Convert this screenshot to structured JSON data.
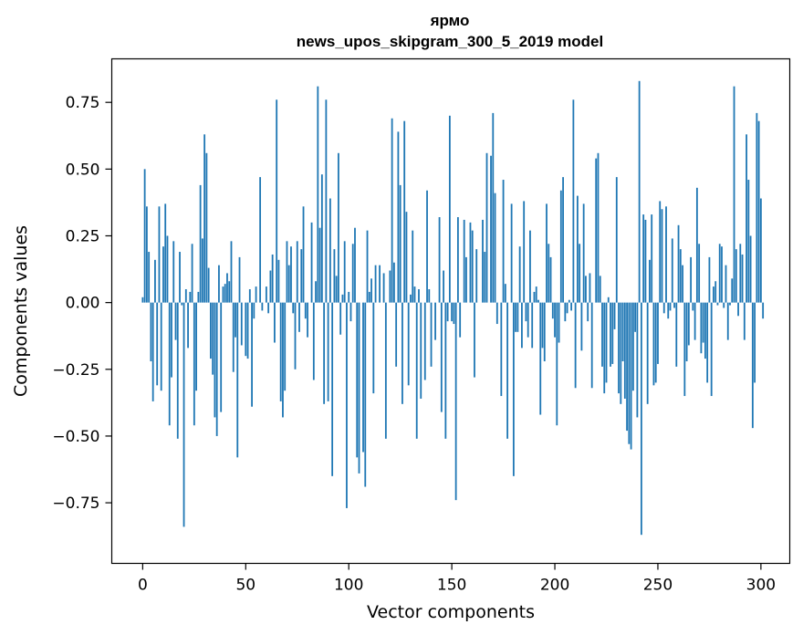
{
  "chart_data": {
    "type": "bar",
    "title": "ярмо",
    "subtitle": "news_upos_skipgram_300_5_2019 model",
    "xlabel": "Vector components",
    "ylabel": "Components values",
    "xlim": [
      -15,
      314
    ],
    "ylim": [
      -0.977,
      0.913
    ],
    "x_ticks": [
      0,
      50,
      100,
      150,
      200,
      250,
      300
    ],
    "x_tick_labels": [
      "0",
      "50",
      "100",
      "150",
      "200",
      "250",
      "300"
    ],
    "y_ticks": [
      -0.75,
      -0.5,
      -0.25,
      0.0,
      0.25,
      0.5,
      0.75
    ],
    "y_tick_labels": [
      "−0.75",
      "−0.50",
      "−0.25",
      "0.00",
      "0.25",
      "0.50",
      "0.75"
    ],
    "grid": false,
    "bar_color": "#1f77b4",
    "values": [
      0.02,
      0.5,
      0.36,
      0.19,
      -0.22,
      -0.37,
      0.16,
      -0.31,
      0.36,
      -0.33,
      0.21,
      0.37,
      0.25,
      -0.46,
      -0.28,
      0.23,
      -0.14,
      -0.51,
      0.19,
      -0.01,
      -0.84,
      0.05,
      -0.17,
      0.04,
      0.22,
      -0.46,
      -0.33,
      0.04,
      0.44,
      0.24,
      0.63,
      0.56,
      0.13,
      -0.21,
      -0.27,
      -0.43,
      -0.5,
      0.14,
      -0.41,
      0.06,
      0.07,
      0.11,
      0.08,
      0.23,
      -0.26,
      -0.13,
      -0.58,
      0.17,
      -0.16,
      0.0,
      -0.2,
      -0.21,
      0.05,
      -0.39,
      -0.06,
      0.06,
      0.0,
      0.47,
      -0.03,
      0.0,
      0.06,
      -0.04,
      0.12,
      0.18,
      -0.15,
      0.76,
      0.16,
      -0.37,
      -0.43,
      -0.33,
      0.23,
      0.14,
      0.21,
      -0.04,
      -0.25,
      0.23,
      -0.11,
      0.2,
      0.36,
      -0.06,
      -0.13,
      0.0,
      0.3,
      -0.29,
      0.08,
      0.81,
      0.28,
      0.48,
      -0.38,
      0.76,
      -0.37,
      0.39,
      -0.65,
      0.2,
      0.1,
      0.56,
      -0.12,
      0.03,
      0.23,
      -0.77,
      0.04,
      -0.07,
      0.22,
      0.28,
      -0.58,
      -0.64,
      0.0,
      -0.56,
      -0.69,
      0.27,
      0.04,
      0.09,
      -0.34,
      0.14,
      0.0,
      0.14,
      0.0,
      0.11,
      -0.51,
      0.0,
      0.12,
      0.69,
      0.15,
      -0.24,
      0.64,
      0.44,
      -0.38,
      0.68,
      0.34,
      -0.31,
      0.03,
      0.27,
      0.06,
      -0.51,
      0.05,
      -0.36,
      0.0,
      -0.29,
      0.42,
      0.05,
      -0.24,
      0.0,
      -0.14,
      0.0,
      0.32,
      -0.41,
      0.12,
      -0.51,
      -0.07,
      0.7,
      -0.07,
      -0.08,
      -0.74,
      0.32,
      -0.13,
      0.0,
      0.31,
      0.17,
      0.0,
      0.3,
      0.27,
      -0.28,
      0.2,
      0.0,
      0.0,
      0.31,
      0.19,
      0.56,
      0.0,
      0.55,
      0.71,
      0.41,
      -0.08,
      0.0,
      -0.35,
      0.46,
      0.07,
      -0.51,
      0.0,
      0.37,
      -0.65,
      -0.11,
      -0.11,
      0.21,
      -0.17,
      0.38,
      -0.07,
      -0.13,
      0.27,
      -0.17,
      0.04,
      0.06,
      0.01,
      -0.42,
      -0.17,
      -0.22,
      0.37,
      0.22,
      0.17,
      -0.06,
      -0.13,
      -0.46,
      -0.15,
      0.42,
      0.47,
      -0.07,
      -0.04,
      0.01,
      -0.03,
      0.76,
      -0.32,
      0.4,
      0.22,
      -0.18,
      0.37,
      0.1,
      -0.07,
      0.11,
      -0.32,
      0.0,
      0.54,
      0.56,
      0.1,
      -0.24,
      -0.34,
      -0.3,
      0.02,
      -0.24,
      -0.23,
      -0.1,
      0.47,
      -0.34,
      -0.38,
      -0.22,
      -0.36,
      -0.48,
      -0.53,
      -0.55,
      -0.33,
      -0.11,
      -0.43,
      0.83,
      -0.87,
      0.33,
      0.31,
      -0.38,
      0.16,
      0.33,
      -0.31,
      -0.3,
      -0.23,
      0.38,
      0.35,
      -0.04,
      0.36,
      -0.06,
      -0.03,
      0.24,
      -0.02,
      -0.24,
      0.29,
      0.2,
      0.14,
      -0.35,
      -0.22,
      -0.16,
      0.17,
      -0.03,
      -0.14,
      0.43,
      0.22,
      -0.19,
      -0.15,
      -0.21,
      -0.3,
      0.17,
      -0.35,
      0.06,
      0.08,
      -0.01,
      0.22,
      0.21,
      -0.02,
      0.14,
      -0.14,
      -0.01,
      0.09,
      0.81,
      0.2,
      -0.05,
      0.22,
      0.18,
      -0.14,
      0.63,
      0.46,
      0.25,
      -0.47,
      -0.3,
      0.71,
      0.68,
      0.39,
      -0.06
    ]
  }
}
